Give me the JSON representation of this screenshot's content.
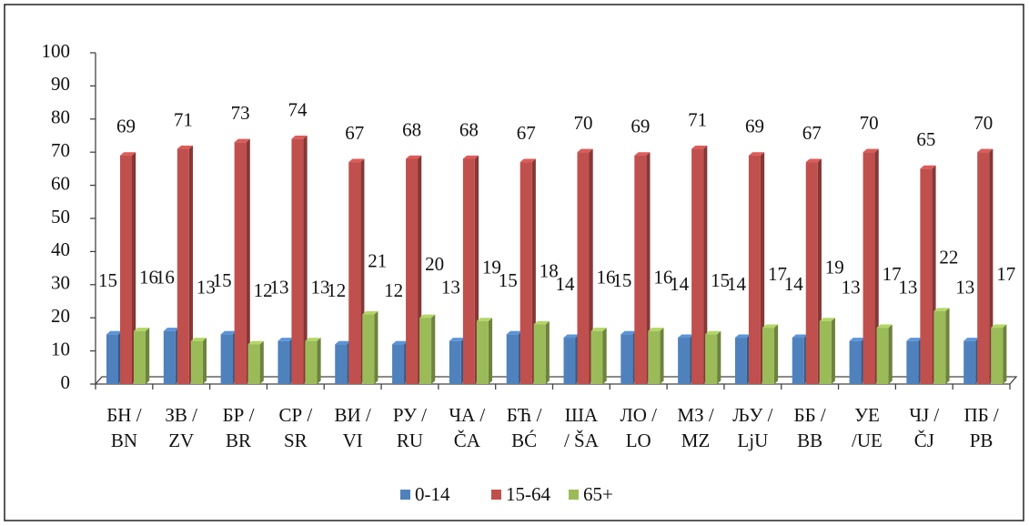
{
  "chart_data": {
    "type": "bar3d",
    "categories": [
      [
        "БН /",
        "BN"
      ],
      [
        "ЗВ /",
        "ZV"
      ],
      [
        "БР /",
        "BR"
      ],
      [
        "СР /",
        "SR"
      ],
      [
        "ВИ /",
        "VI"
      ],
      [
        "РУ /",
        "RU"
      ],
      [
        "ЧА /",
        "ČA"
      ],
      [
        "БЋ /",
        "BĆ"
      ],
      [
        "ША",
        "/ ŠA"
      ],
      [
        "ЛО /",
        "LO"
      ],
      [
        "МЗ /",
        "MZ"
      ],
      [
        "ЉУ /",
        "LjU"
      ],
      [
        "ББ /",
        "BB"
      ],
      [
        "УЕ",
        "/UE"
      ],
      [
        "ЧЈ /",
        "ČJ"
      ],
      [
        "ПБ /",
        "PB"
      ]
    ],
    "series": [
      {
        "name": "0-14",
        "color": "#4f81bd",
        "values": [
          15,
          16,
          15,
          13,
          12,
          12,
          13,
          15,
          14,
          15,
          14,
          14,
          14,
          13,
          13,
          13
        ]
      },
      {
        "name": "15-64",
        "color": "#c0504d",
        "values": [
          69,
          71,
          73,
          74,
          67,
          68,
          68,
          67,
          70,
          69,
          71,
          69,
          67,
          70,
          65,
          70
        ]
      },
      {
        "name": "65+",
        "color": "#9bbb59",
        "values": [
          16,
          13,
          12,
          13,
          21,
          20,
          19,
          18,
          16,
          16,
          15,
          17,
          19,
          17,
          22,
          17
        ]
      }
    ],
    "ylim": [
      0,
      100
    ],
    "yticks": [
      0,
      10,
      20,
      30,
      40,
      50,
      60,
      70,
      80,
      90,
      100
    ],
    "legend": "bottom"
  }
}
